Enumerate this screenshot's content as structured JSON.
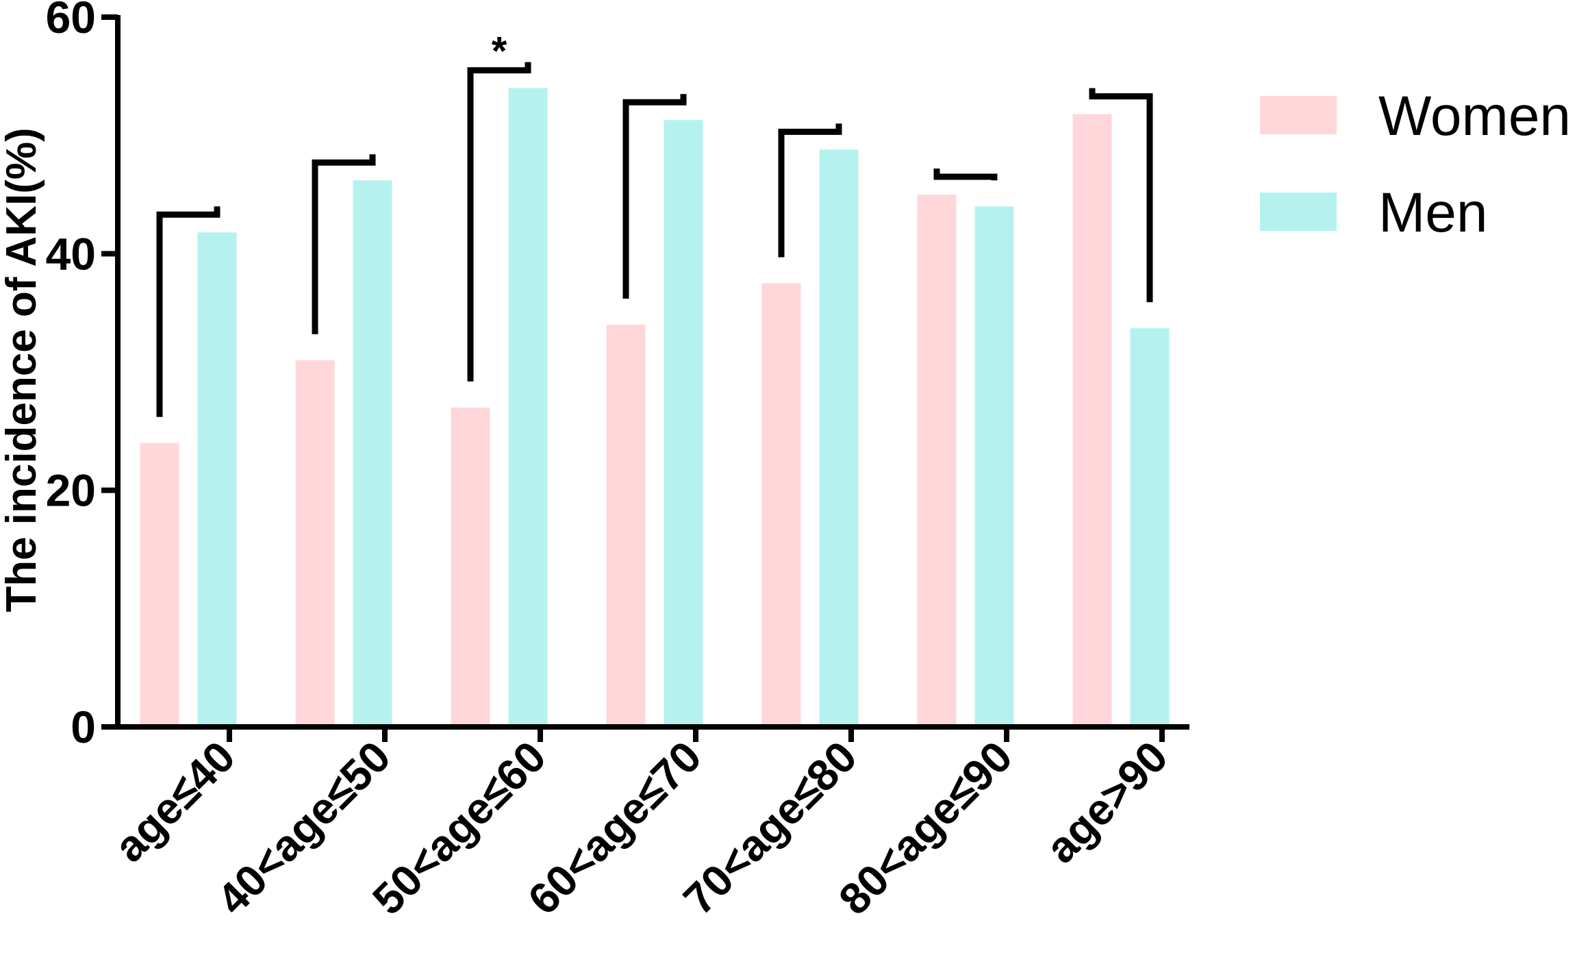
{
  "chart_data": {
    "type": "bar",
    "title": "",
    "xlabel": "",
    "ylabel": "The incidence of AKI(%)",
    "ylim": [
      0,
      60
    ],
    "yticks": [
      0,
      20,
      40,
      60
    ],
    "categories": [
      "age≤40",
      "40<age≤50",
      "50<age≤60",
      "60<age≤70",
      "70<age≤80",
      "80<age≤90",
      "age>90"
    ],
    "series": [
      {
        "name": "Women",
        "color": "#FFD7DA",
        "values": [
          24,
          31,
          27,
          34,
          37.5,
          45,
          51.8
        ]
      },
      {
        "name": "Men",
        "color": "#B5F2EF",
        "values": [
          41.8,
          46.2,
          54,
          51.3,
          48.8,
          44,
          33.7
        ]
      }
    ],
    "significance": [
      "",
      "",
      "*",
      "",
      "",
      "",
      ""
    ],
    "grid": false,
    "legend_position": "top-right"
  }
}
